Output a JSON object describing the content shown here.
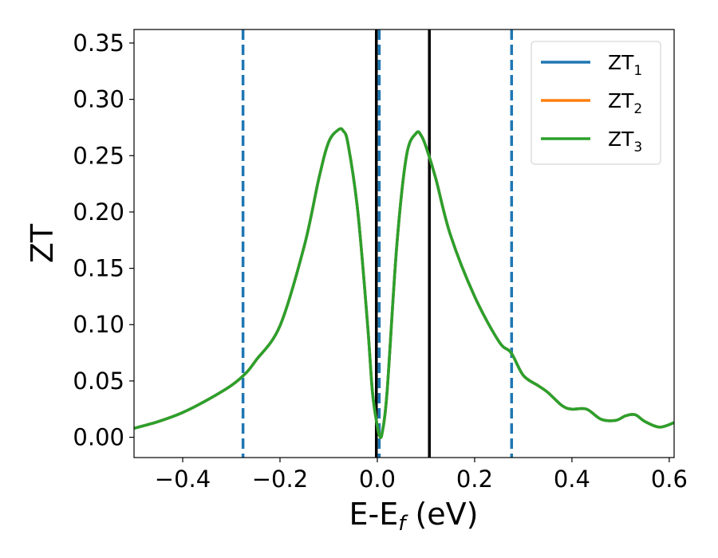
{
  "chart_data": {
    "type": "line",
    "xlabel": "E-E",
    "xlabel_sub": "f",
    "xlabel_unit": " (eV)",
    "ylabel": "ZT",
    "xlim": [
      -0.5,
      0.61
    ],
    "ylim": [
      -0.018,
      0.362
    ],
    "x_ticks": [
      -0.4,
      -0.2,
      0.0,
      0.2,
      0.4,
      0.6
    ],
    "x_tick_labels": [
      "−0.4",
      "−0.2",
      "0.0",
      "0.2",
      "0.4",
      "0.6"
    ],
    "y_ticks": [
      0.0,
      0.05,
      0.1,
      0.15,
      0.2,
      0.25,
      0.3,
      0.35
    ],
    "y_tick_labels": [
      "0.00",
      "0.05",
      "0.10",
      "0.15",
      "0.20",
      "0.25",
      "0.30",
      "0.35"
    ],
    "grid": false,
    "legend_position": "top-right",
    "series": [
      {
        "name": "ZT",
        "name_sub": "1",
        "color": "#1f77b4",
        "x": [
          -0.5,
          -0.45,
          -0.4,
          -0.35,
          -0.3,
          -0.27,
          -0.25,
          -0.2,
          -0.15,
          -0.12,
          -0.1,
          -0.08,
          -0.07,
          -0.06,
          -0.04,
          -0.02,
          -0.01,
          0.0,
          0.005,
          0.01,
          0.02,
          0.04,
          0.06,
          0.08,
          0.09,
          0.1,
          0.12,
          0.15,
          0.2,
          0.25,
          0.275,
          0.3,
          0.33,
          0.35,
          0.38,
          0.4,
          0.43,
          0.46,
          0.49,
          0.51,
          0.53,
          0.55,
          0.58,
          0.61
        ],
        "y": [
          0.008,
          0.014,
          0.022,
          0.033,
          0.046,
          0.057,
          0.068,
          0.099,
          0.17,
          0.23,
          0.262,
          0.273,
          0.272,
          0.26,
          0.2,
          0.1,
          0.04,
          0.01,
          0.001,
          0.004,
          0.04,
          0.17,
          0.25,
          0.27,
          0.268,
          0.258,
          0.23,
          0.18,
          0.125,
          0.085,
          0.075,
          0.055,
          0.046,
          0.04,
          0.028,
          0.025,
          0.025,
          0.016,
          0.015,
          0.019,
          0.02,
          0.014,
          0.009,
          0.013
        ]
      },
      {
        "name": "ZT",
        "name_sub": "2",
        "color": "#ff7f0e",
        "x": [
          -0.5,
          -0.45,
          -0.4,
          -0.35,
          -0.3,
          -0.27,
          -0.25,
          -0.2,
          -0.15,
          -0.12,
          -0.1,
          -0.08,
          -0.07,
          -0.06,
          -0.04,
          -0.02,
          -0.01,
          0.0,
          0.005,
          0.01,
          0.02,
          0.04,
          0.06,
          0.08,
          0.09,
          0.1,
          0.12,
          0.15,
          0.2,
          0.25,
          0.275,
          0.3,
          0.33,
          0.35,
          0.38,
          0.4,
          0.43,
          0.46,
          0.49,
          0.51,
          0.53,
          0.55,
          0.58,
          0.61
        ],
        "y": [
          0.008,
          0.014,
          0.022,
          0.033,
          0.046,
          0.057,
          0.068,
          0.099,
          0.17,
          0.23,
          0.262,
          0.273,
          0.272,
          0.26,
          0.2,
          0.1,
          0.04,
          0.01,
          0.001,
          0.004,
          0.04,
          0.17,
          0.25,
          0.27,
          0.268,
          0.258,
          0.23,
          0.18,
          0.125,
          0.085,
          0.075,
          0.055,
          0.046,
          0.04,
          0.028,
          0.025,
          0.025,
          0.016,
          0.015,
          0.019,
          0.02,
          0.014,
          0.009,
          0.013
        ]
      },
      {
        "name": "ZT",
        "name_sub": "3",
        "color": "#2ca02c",
        "x": [
          -0.5,
          -0.45,
          -0.4,
          -0.35,
          -0.3,
          -0.27,
          -0.25,
          -0.2,
          -0.15,
          -0.12,
          -0.1,
          -0.08,
          -0.07,
          -0.06,
          -0.04,
          -0.02,
          -0.01,
          0.0,
          0.005,
          0.01,
          0.02,
          0.04,
          0.06,
          0.08,
          0.09,
          0.1,
          0.12,
          0.15,
          0.2,
          0.25,
          0.275,
          0.3,
          0.33,
          0.35,
          0.38,
          0.4,
          0.43,
          0.46,
          0.49,
          0.51,
          0.53,
          0.55,
          0.58,
          0.61
        ],
        "y": [
          0.008,
          0.014,
          0.022,
          0.033,
          0.046,
          0.057,
          0.068,
          0.099,
          0.17,
          0.23,
          0.262,
          0.273,
          0.272,
          0.26,
          0.2,
          0.1,
          0.04,
          0.01,
          0.001,
          0.004,
          0.04,
          0.17,
          0.25,
          0.27,
          0.268,
          0.258,
          0.23,
          0.18,
          0.125,
          0.085,
          0.075,
          0.055,
          0.046,
          0.04,
          0.028,
          0.025,
          0.025,
          0.016,
          0.015,
          0.019,
          0.02,
          0.014,
          0.009,
          0.013
        ]
      }
    ],
    "vertical_lines": [
      {
        "x": -0.276,
        "style": "dashed",
        "color": "#1f77b4"
      },
      {
        "x": 0.004,
        "style": "dashed",
        "color": "#1f77b4"
      },
      {
        "x": 0.276,
        "style": "dashed",
        "color": "#1f77b4"
      },
      {
        "x": -0.002,
        "style": "solid",
        "color": "#000000"
      },
      {
        "x": 0.107,
        "style": "solid",
        "color": "#000000"
      }
    ]
  }
}
